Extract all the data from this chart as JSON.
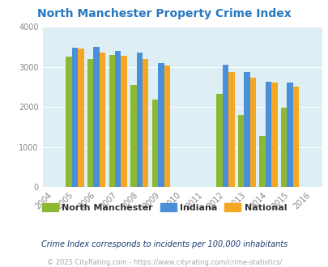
{
  "title": "North Manchester Property Crime Index",
  "all_years": [
    2004,
    2005,
    2006,
    2007,
    2008,
    2009,
    2010,
    2011,
    2012,
    2013,
    2014,
    2015,
    2016
  ],
  "data_years": [
    2005,
    2006,
    2007,
    2008,
    2009,
    2012,
    2013,
    2014,
    2015
  ],
  "north_manchester": [
    3250,
    3200,
    3300,
    2550,
    2175,
    2325,
    1800,
    1275,
    1975
  ],
  "indiana": [
    3475,
    3500,
    3400,
    3360,
    3100,
    3050,
    2875,
    2625,
    2600
  ],
  "national": [
    3450,
    3360,
    3270,
    3200,
    3040,
    2860,
    2720,
    2600,
    2500
  ],
  "color_nm": "#8db832",
  "color_ind": "#4a90d9",
  "color_nat": "#f5a623",
  "bg_color": "#ddeef5",
  "ylim": [
    0,
    4000
  ],
  "yticks": [
    0,
    1000,
    2000,
    3000,
    4000
  ],
  "legend_labels": [
    "North Manchester",
    "Indiana",
    "National"
  ],
  "footnote1": "Crime Index corresponds to incidents per 100,000 inhabitants",
  "footnote2": "© 2025 CityRating.com - https://www.cityrating.com/crime-statistics/",
  "title_color": "#2878c0",
  "footnote1_color": "#1a3a6e",
  "footnote2_color": "#aaaaaa",
  "bar_width": 0.28
}
